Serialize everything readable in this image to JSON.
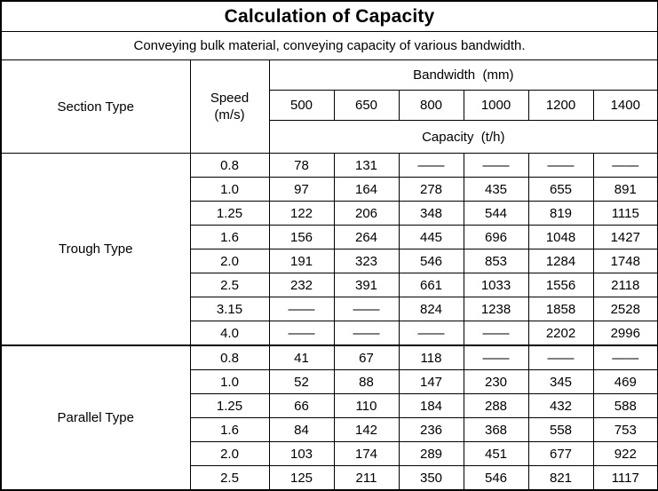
{
  "title": "Calculation of Capacity",
  "subtitle": "Conveying bulk material, conveying capacity of various bandwidth.",
  "header": {
    "section_type": "Section Type",
    "speed_label": "Speed",
    "speed_unit": "(m/s)",
    "bandwidth_label": "Bandwidth  (mm)",
    "bandwidths": [
      "500",
      "650",
      "800",
      "1000",
      "1200",
      "1400"
    ],
    "capacity_label": "Capacity  (t/h)"
  },
  "empty_cell_glyph": "——",
  "sections": [
    {
      "name": "Trough Type",
      "rows": [
        {
          "speed": "0.8",
          "values": [
            "78",
            "131",
            "——",
            "——",
            "——",
            "——"
          ]
        },
        {
          "speed": "1.0",
          "values": [
            "97",
            "164",
            "278",
            "435",
            "655",
            "891"
          ]
        },
        {
          "speed": "1.25",
          "values": [
            "122",
            "206",
            "348",
            "544",
            "819",
            "1115"
          ]
        },
        {
          "speed": "1.6",
          "values": [
            "156",
            "264",
            "445",
            "696",
            "1048",
            "1427"
          ]
        },
        {
          "speed": "2.0",
          "values": [
            "191",
            "323",
            "546",
            "853",
            "1284",
            "1748"
          ]
        },
        {
          "speed": "2.5",
          "values": [
            "232",
            "391",
            "661",
            "1033",
            "1556",
            "2118"
          ]
        },
        {
          "speed": "3.15",
          "values": [
            "——",
            "——",
            "824",
            "1238",
            "1858",
            "2528"
          ]
        },
        {
          "speed": "4.0",
          "values": [
            "——",
            "——",
            "——",
            "——",
            "2202",
            "2996"
          ]
        }
      ]
    },
    {
      "name": "Parallel Type",
      "rows": [
        {
          "speed": "0.8",
          "values": [
            "41",
            "67",
            "118",
            "——",
            "——",
            "——"
          ]
        },
        {
          "speed": "1.0",
          "values": [
            "52",
            "88",
            "147",
            "230",
            "345",
            "469"
          ]
        },
        {
          "speed": "1.25",
          "values": [
            "66",
            "110",
            "184",
            "288",
            "432",
            "588"
          ]
        },
        {
          "speed": "1.6",
          "values": [
            "84",
            "142",
            "236",
            "368",
            "558",
            "753"
          ]
        },
        {
          "speed": "2.0",
          "values": [
            "103",
            "174",
            "289",
            "451",
            "677",
            "922"
          ]
        },
        {
          "speed": "2.5",
          "values": [
            "125",
            "211",
            "350",
            "546",
            "821",
            "1117"
          ]
        }
      ]
    }
  ]
}
